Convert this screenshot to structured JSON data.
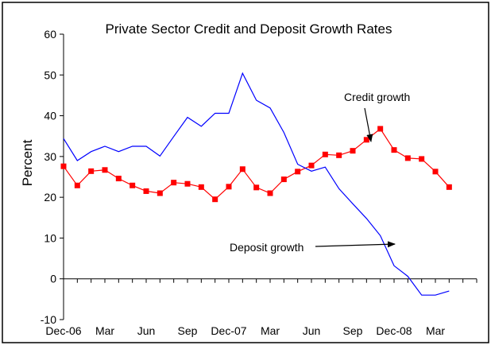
{
  "chart_data": {
    "type": "line",
    "title": "Private Sector Credit and Deposit Growth Rates",
    "xlabel": "",
    "ylabel": "Percent",
    "ylim": [
      -10,
      60
    ],
    "yticks": [
      -10,
      0,
      10,
      20,
      30,
      40,
      50,
      60
    ],
    "x_tick_labels": [
      "Dec-06",
      "Mar",
      "Jun",
      "Sep",
      "Dec-07",
      "Mar",
      "Jun",
      "Sep",
      "Dec-08",
      "Mar"
    ],
    "x_tick_label_month_index": [
      0,
      3,
      6,
      9,
      12,
      15,
      18,
      21,
      24,
      27
    ],
    "x": [
      "Dec-06",
      "Jan-07",
      "Feb-07",
      "Mar-07",
      "Apr-07",
      "May-07",
      "Jun-07",
      "Jul-07",
      "Aug-07",
      "Sep-07",
      "Oct-07",
      "Nov-07",
      "Dec-07",
      "Jan-08",
      "Feb-08",
      "Mar-08",
      "Apr-08",
      "May-08",
      "Jun-08",
      "Jul-08",
      "Aug-08",
      "Sep-08",
      "Oct-08",
      "Nov-08",
      "Dec-08",
      "Jan-09",
      "Feb-09",
      "Mar-09",
      "Apr-09",
      "May-09"
    ],
    "grid": false,
    "legend": "none",
    "series": [
      {
        "name": "Credit growth",
        "color": "#ff0000",
        "marker": "square",
        "values": [
          27.6,
          22.9,
          26.4,
          26.7,
          24.6,
          22.9,
          21.5,
          21.0,
          23.6,
          23.3,
          22.5,
          19.5,
          22.6,
          26.9,
          22.4,
          21.0,
          24.4,
          26.3,
          27.8,
          30.5,
          30.3,
          31.4,
          34.1,
          36.8,
          31.6,
          29.6,
          29.4,
          26.3,
          22.5,
          null
        ]
      },
      {
        "name": "Deposit growth",
        "color": "#0000ff",
        "marker": "none",
        "values": [
          34.4,
          29.0,
          31.2,
          32.5,
          31.2,
          32.5,
          32.5,
          30.1,
          34.9,
          39.6,
          37.4,
          40.6,
          40.6,
          50.4,
          43.8,
          41.9,
          35.9,
          28.1,
          26.4,
          27.4,
          22.1,
          18.4,
          14.8,
          10.6,
          3.2,
          0.6,
          -4.0,
          -4.0,
          -3.0,
          null
        ]
      }
    ],
    "annotations": [
      {
        "text": "Credit growth",
        "points_to": "Credit growth"
      },
      {
        "text": "Deposit growth",
        "points_to": "Deposit growth"
      }
    ]
  }
}
